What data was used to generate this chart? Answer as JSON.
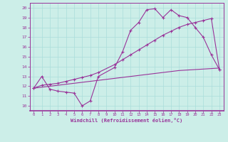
{
  "xlabel": "Windchill (Refroidissement éolien,°C)",
  "bg_color": "#cceee8",
  "line_color": "#993399",
  "xlim": [
    -0.5,
    23.5
  ],
  "ylim": [
    9.5,
    20.5
  ],
  "xticks": [
    0,
    1,
    2,
    3,
    4,
    5,
    6,
    7,
    8,
    9,
    10,
    11,
    12,
    13,
    14,
    15,
    16,
    17,
    18,
    19,
    20,
    21,
    22,
    23
  ],
  "yticks": [
    10,
    11,
    12,
    13,
    14,
    15,
    16,
    17,
    18,
    19,
    20
  ],
  "line1_x": [
    0,
    1,
    2,
    3,
    4,
    5,
    6,
    7,
    8,
    10,
    11,
    12,
    13,
    14,
    15,
    16,
    17,
    18,
    19,
    20,
    21,
    22,
    23
  ],
  "line1_y": [
    11.8,
    13.0,
    11.7,
    11.5,
    11.4,
    11.3,
    10.0,
    10.5,
    13.0,
    13.9,
    15.5,
    17.7,
    18.5,
    19.8,
    19.9,
    19.0,
    19.8,
    19.2,
    19.0,
    18.0,
    17.0,
    15.2,
    13.7
  ],
  "line2_x": [
    0,
    1,
    2,
    3,
    4,
    5,
    6,
    7,
    8,
    10,
    11,
    12,
    13,
    14,
    15,
    16,
    17,
    18,
    19,
    20,
    21,
    22,
    23
  ],
  "line2_y": [
    11.8,
    12.1,
    12.2,
    12.3,
    12.5,
    12.7,
    12.9,
    13.1,
    13.4,
    14.2,
    14.7,
    15.2,
    15.7,
    16.2,
    16.7,
    17.2,
    17.6,
    18.0,
    18.3,
    18.5,
    18.7,
    18.9,
    13.7
  ],
  "line3_x": [
    0,
    2,
    3,
    4,
    5,
    6,
    7,
    8,
    9,
    10,
    11,
    12,
    13,
    14,
    15,
    16,
    17,
    18,
    19,
    20,
    21,
    22,
    23
  ],
  "line3_y": [
    11.8,
    12.0,
    12.1,
    12.2,
    12.3,
    12.4,
    12.5,
    12.6,
    12.7,
    12.8,
    12.9,
    13.0,
    13.1,
    13.2,
    13.3,
    13.4,
    13.5,
    13.6,
    13.65,
    13.7,
    13.75,
    13.8,
    13.85
  ],
  "grid_color": "#aaddda"
}
